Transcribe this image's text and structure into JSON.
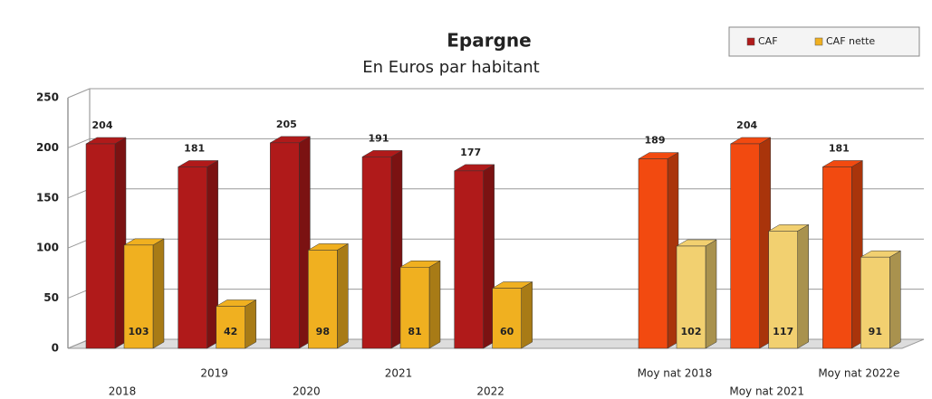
{
  "chart_data": {
    "type": "bar3d",
    "title": "Epargne",
    "subtitle": "En Euros par habitant",
    "categories": [
      "2018",
      "2019",
      "2020",
      "2021",
      "2022",
      null,
      "Moy nat 2018",
      "Moy nat 2021",
      "Moy nat 2022e"
    ],
    "series": [
      {
        "name": "CAF",
        "color": "#b01a1a",
        "colors": [
          "#b01a1a",
          "#b01a1a",
          "#b01a1a",
          "#b01a1a",
          "#b01a1a",
          null,
          "#f24a10",
          "#f24a10",
          "#f24a10"
        ],
        "values": [
          204,
          181,
          205,
          191,
          177,
          null,
          189,
          204,
          181
        ]
      },
      {
        "name": "CAF nette",
        "color": "#f0b020",
        "colors": [
          "#f0b020",
          "#f0b020",
          "#f0b020",
          "#f0b020",
          "#f0b020",
          null,
          "#f2d070",
          "#f2d070",
          "#f2d070"
        ],
        "values": [
          103,
          42,
          98,
          81,
          60,
          null,
          102,
          117,
          91
        ]
      }
    ],
    "ylim": [
      0,
      250
    ],
    "yticks": [
      0,
      50,
      100,
      150,
      200,
      250
    ],
    "grid": true,
    "legend": "top-right"
  }
}
